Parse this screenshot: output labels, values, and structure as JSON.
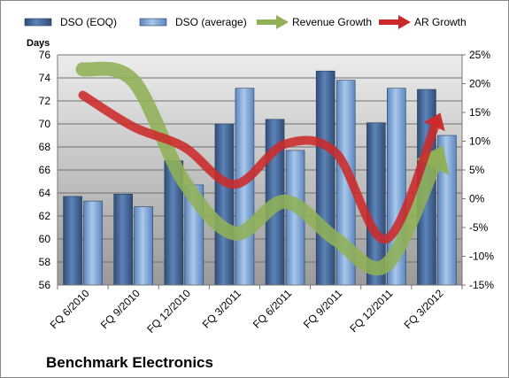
{
  "chart_data": {
    "type": "bar",
    "title": "",
    "ylabel": "Days",
    "y2label": "",
    "categories": [
      "FQ 6/2010",
      "FQ 9/2010",
      "FQ 12/2010",
      "FQ 3/2011",
      "FQ 6/2011",
      "FQ 9/2011",
      "FQ 12/2011",
      "FQ 3/2012"
    ],
    "ylim": [
      56,
      76
    ],
    "yticks": [
      56,
      58,
      60,
      62,
      64,
      66,
      68,
      70,
      72,
      74,
      76
    ],
    "y2lim": [
      -15,
      25
    ],
    "y2ticks": [
      "-15%",
      "-10%",
      "-5%",
      "0%",
      "5%",
      "10%",
      "15%",
      "20%",
      "25%"
    ],
    "y2tick_values": [
      -15,
      -10,
      -5,
      0,
      5,
      10,
      15,
      20,
      25
    ],
    "grid": true,
    "legend_position": "top",
    "bar_series": [
      {
        "name": "DSO (EOQ)",
        "color": "#4a6fa5",
        "values": [
          63.7,
          63.9,
          66.8,
          70.0,
          70.4,
          74.6,
          70.1,
          73.0
        ]
      },
      {
        "name": "DSO (average)",
        "color": "#7aa3d6",
        "values": [
          63.3,
          62.8,
          64.7,
          73.1,
          67.7,
          73.8,
          73.1,
          69.0
        ]
      }
    ],
    "line_series": [
      {
        "name": "Revenue Growth",
        "color": "#8fb056",
        "axis": "right",
        "values": [
          22.5,
          20.5,
          3.0,
          -6.0,
          -0.5,
          -7.0,
          -11.5,
          7.0
        ]
      },
      {
        "name": "AR Growth",
        "color": "#cc2a2a",
        "axis": "right",
        "values": [
          18.0,
          12.5,
          9.0,
          2.5,
          9.5,
          8.0,
          -7.0,
          13.5
        ]
      }
    ]
  },
  "company_name": "Benchmark Electronics"
}
